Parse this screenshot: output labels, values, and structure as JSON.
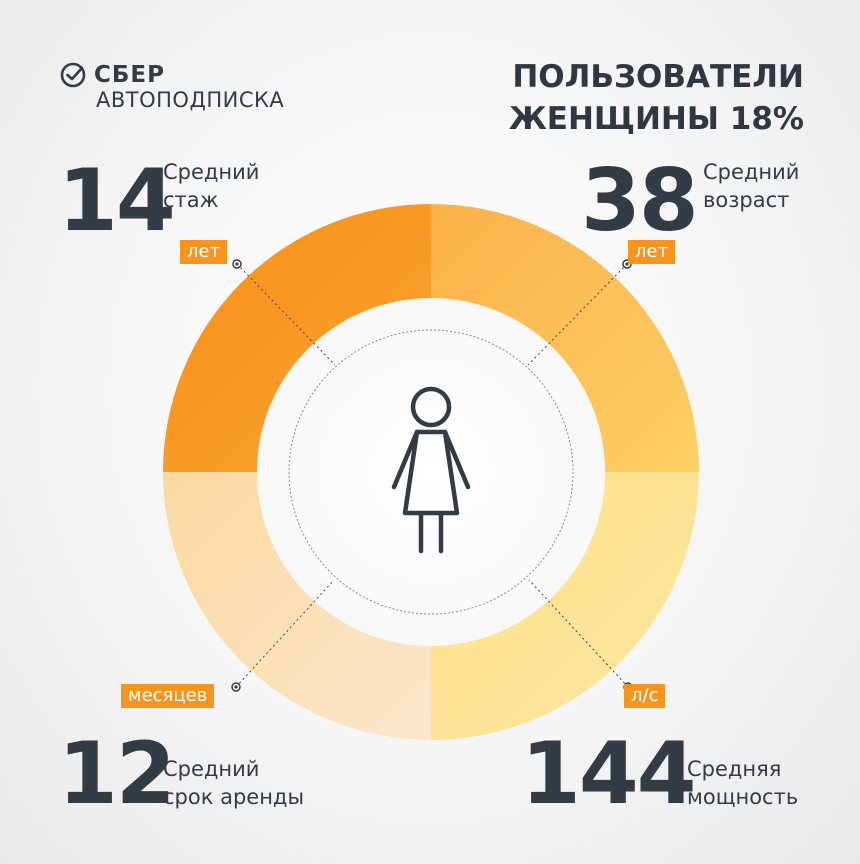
{
  "brand": {
    "name": "СБЕР",
    "product": "АВТОПОДПИСКА"
  },
  "headline": {
    "line1": "ПОЛЬЗОВАТЕЛИ",
    "line2": "ЖЕНЩИНЫ 18%"
  },
  "stats": {
    "experience": {
      "value": "14",
      "label_line1": "Средний",
      "label_line2": "стаж",
      "unit": "лет"
    },
    "age": {
      "value": "38",
      "label_line1": "Средний",
      "label_line2": "возраст",
      "unit": "лет"
    },
    "rent_term": {
      "value": "12",
      "label_line1": "Средний",
      "label_line2": "срок аренды",
      "unit": "месяцев"
    },
    "power": {
      "value": "144",
      "label_line1": "Средняя",
      "label_line2": "мощность",
      "unit": "л/с"
    }
  },
  "icons": {
    "center": "woman-icon",
    "logo": "sber-check-icon"
  },
  "colors": {
    "orange": "#f7941d",
    "text": "#333b45"
  }
}
